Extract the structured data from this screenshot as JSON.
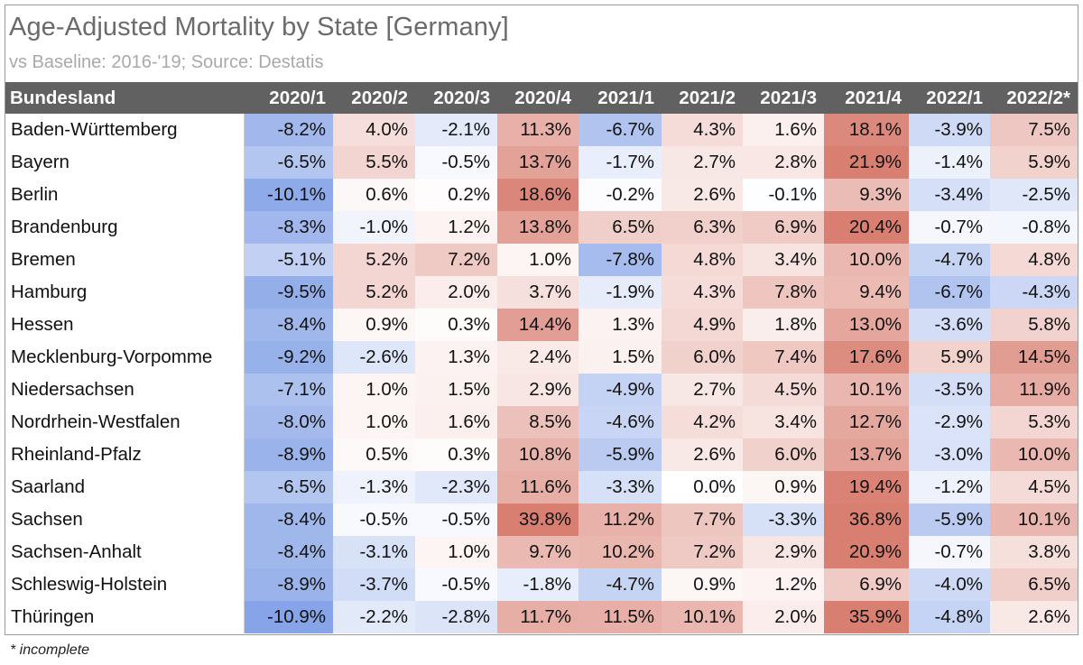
{
  "chart_data": {
    "type": "table",
    "title": "Age-Adjusted Mortality by State [Germany]",
    "subtitle": "vs Baseline: 2016-'19; Source: Destatis",
    "row_header": "Bundesland",
    "columns": [
      "2020/1",
      "2020/2",
      "2020/3",
      "2020/4",
      "2021/1",
      "2021/2",
      "2021/3",
      "2021/4",
      "2022/1",
      "2022/2*"
    ],
    "footnote": "* incomplete",
    "colors": {
      "positive": "#d7786a",
      "negative": "#7f9ee6",
      "neutral": "#ffffff",
      "header_bg": "#616161",
      "header_text": "#ffffff",
      "title": "#6b6b6b",
      "subtitle": "#a9a9a9"
    },
    "rows": [
      {
        "state": "Baden-Württemberg",
        "values": [
          -8.2,
          4.0,
          -2.1,
          11.3,
          -6.7,
          4.3,
          1.6,
          18.1,
          -3.9,
          7.5
        ]
      },
      {
        "state": "Bayern",
        "values": [
          -6.5,
          5.5,
          -0.5,
          13.7,
          -1.7,
          2.7,
          2.8,
          21.9,
          -1.4,
          5.9
        ]
      },
      {
        "state": "Berlin",
        "values": [
          -10.1,
          0.6,
          0.2,
          18.6,
          -0.2,
          2.6,
          -0.1,
          9.3,
          -3.4,
          -2.5
        ]
      },
      {
        "state": "Brandenburg",
        "values": [
          -8.3,
          -1.0,
          1.2,
          13.8,
          6.5,
          6.3,
          6.9,
          20.4,
          -0.7,
          -0.8
        ]
      },
      {
        "state": "Bremen",
        "values": [
          -5.1,
          5.2,
          7.2,
          1.0,
          -7.8,
          4.8,
          3.4,
          10.0,
          -4.7,
          4.8
        ]
      },
      {
        "state": "Hamburg",
        "values": [
          -9.5,
          5.2,
          2.0,
          3.7,
          -1.9,
          4.3,
          7.8,
          9.4,
          -6.7,
          -4.3
        ]
      },
      {
        "state": "Hessen",
        "values": [
          -8.4,
          0.9,
          0.3,
          14.4,
          1.3,
          4.9,
          1.8,
          13.0,
          -3.6,
          5.8
        ]
      },
      {
        "state": "Mecklenburg-Vorpomme",
        "values": [
          -9.2,
          -2.6,
          1.3,
          2.4,
          1.5,
          6.0,
          7.4,
          17.6,
          5.9,
          14.5
        ]
      },
      {
        "state": "Niedersachsen",
        "values": [
          -7.1,
          1.0,
          1.5,
          2.9,
          -4.9,
          2.7,
          4.5,
          10.1,
          -3.5,
          11.9
        ]
      },
      {
        "state": "Nordrhein-Westfalen",
        "values": [
          -8.0,
          1.0,
          1.6,
          8.5,
          -4.6,
          4.2,
          3.4,
          12.7,
          -2.9,
          5.3
        ]
      },
      {
        "state": "Rheinland-Pfalz",
        "values": [
          -8.9,
          0.5,
          0.3,
          10.8,
          -5.9,
          2.6,
          6.0,
          13.7,
          -3.0,
          10.0
        ]
      },
      {
        "state": "Saarland",
        "values": [
          -6.5,
          -1.3,
          -2.3,
          11.6,
          -3.3,
          0.0,
          0.9,
          19.4,
          -1.2,
          4.5
        ]
      },
      {
        "state": "Sachsen",
        "values": [
          -8.4,
          -0.5,
          -0.5,
          39.8,
          11.2,
          7.7,
          -3.3,
          36.8,
          -5.9,
          10.1
        ]
      },
      {
        "state": "Sachsen-Anhalt",
        "values": [
          -8.4,
          -3.1,
          1.0,
          9.7,
          10.2,
          7.2,
          2.9,
          20.9,
          -0.7,
          3.8
        ]
      },
      {
        "state": "Schleswig-Holstein",
        "values": [
          -8.9,
          -3.7,
          -0.5,
          -1.8,
          -4.7,
          0.9,
          1.2,
          6.9,
          -4.0,
          6.5
        ]
      },
      {
        "state": "Thüringen",
        "values": [
          -10.9,
          -2.2,
          -2.8,
          11.7,
          11.5,
          10.1,
          2.0,
          35.9,
          -4.8,
          2.6
        ]
      }
    ]
  }
}
